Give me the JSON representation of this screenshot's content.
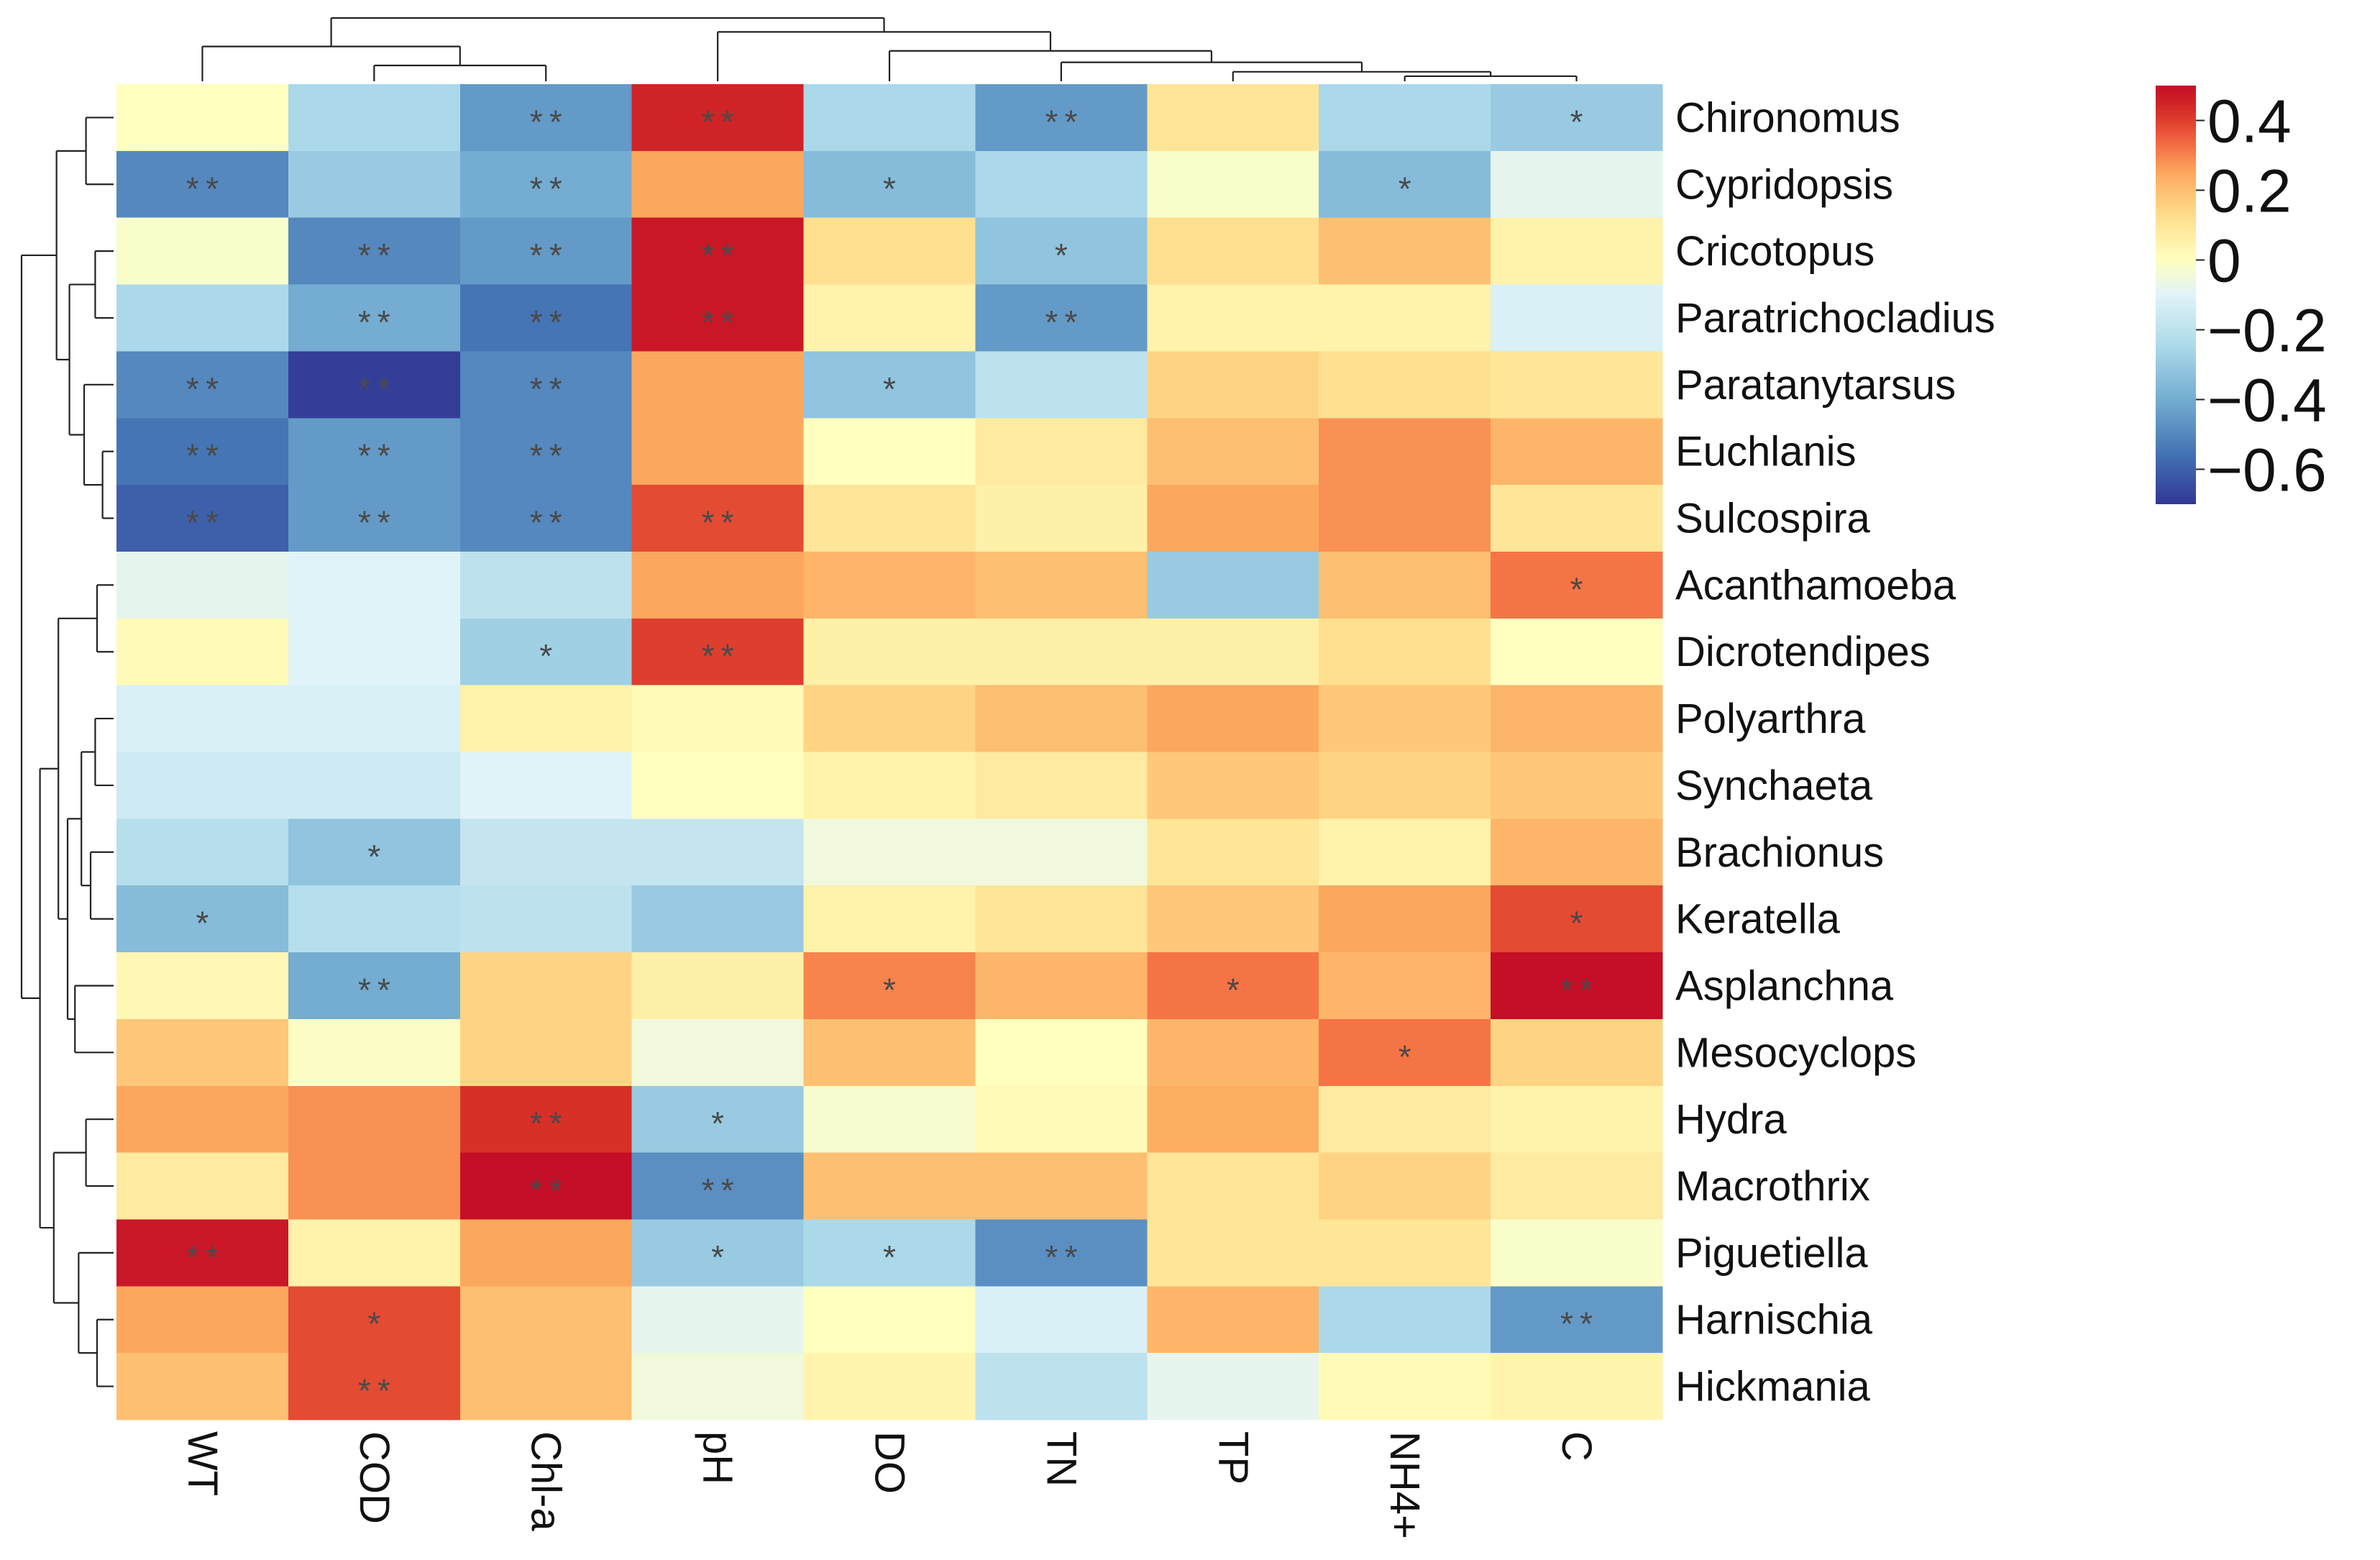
{
  "chart_data": {
    "type": "heatmap",
    "title": "",
    "columns": [
      "WT",
      "COD",
      "Chl-a",
      "pH",
      "DO",
      "TN",
      "TP",
      "NH4+",
      "C"
    ],
    "rows": [
      "Chironomus",
      "Cypridopsis",
      "Cricotopus",
      "Paratrichocladius",
      "Paratanytarsus",
      "Euchlanis",
      "Sulcospira",
      "Acanthamoeba",
      "Dicrotendipes",
      "Polyarthra",
      "Synchaeta",
      "Brachionus",
      "Keratella",
      "Asplanchna",
      "Mesocyclops",
      "Hydra",
      "Macrothrix",
      "Piguetiella",
      "Harnischia",
      "Hickmania"
    ],
    "values": [
      [
        0.0,
        -0.25,
        -0.45,
        0.45,
        -0.25,
        -0.45,
        0.1,
        -0.25,
        -0.3
      ],
      [
        -0.5,
        -0.3,
        -0.4,
        0.25,
        -0.35,
        -0.25,
        -0.02,
        -0.35,
        -0.08
      ],
      [
        -0.02,
        -0.5,
        -0.45,
        0.48,
        0.12,
        -0.32,
        0.12,
        0.2,
        0.05
      ],
      [
        -0.25,
        -0.4,
        -0.55,
        0.48,
        0.05,
        -0.45,
        0.05,
        0.05,
        -0.12
      ],
      [
        -0.5,
        -0.68,
        -0.5,
        0.25,
        -0.32,
        -0.2,
        0.15,
        0.12,
        0.1
      ],
      [
        -0.55,
        -0.45,
        -0.5,
        0.25,
        0.0,
        0.08,
        0.2,
        0.28,
        0.22
      ],
      [
        -0.6,
        -0.45,
        -0.5,
        0.38,
        0.1,
        0.06,
        0.25,
        0.28,
        0.1
      ],
      [
        -0.08,
        -0.1,
        -0.2,
        0.25,
        0.22,
        0.2,
        -0.3,
        0.2,
        0.32
      ],
      [
        0.02,
        -0.1,
        -0.28,
        0.4,
        0.06,
        0.06,
        0.06,
        0.12,
        0.0
      ],
      [
        -0.12,
        -0.12,
        0.05,
        0.02,
        0.15,
        0.2,
        0.25,
        0.18,
        0.22
      ],
      [
        -0.15,
        -0.15,
        -0.1,
        0.0,
        0.05,
        0.08,
        0.18,
        0.15,
        0.18
      ],
      [
        -0.22,
        -0.32,
        -0.18,
        -0.18,
        -0.05,
        -0.05,
        0.1,
        0.05,
        0.22
      ],
      [
        -0.35,
        -0.22,
        -0.2,
        -0.3,
        0.05,
        0.1,
        0.18,
        0.25,
        0.38
      ],
      [
        0.03,
        -0.4,
        0.15,
        0.06,
        0.3,
        0.22,
        0.32,
        0.22,
        0.5
      ],
      [
        0.18,
        -0.01,
        0.15,
        -0.05,
        0.2,
        0.0,
        0.22,
        0.32,
        0.15
      ],
      [
        0.25,
        0.28,
        0.42,
        -0.3,
        -0.03,
        0.02,
        0.24,
        0.08,
        0.05
      ],
      [
        0.08,
        0.28,
        0.5,
        -0.48,
        0.2,
        0.2,
        0.1,
        0.15,
        0.08
      ],
      [
        0.48,
        0.05,
        0.25,
        -0.3,
        -0.25,
        -0.48,
        0.1,
        0.1,
        -0.02
      ],
      [
        0.25,
        0.38,
        0.2,
        -0.08,
        0.0,
        -0.12,
        0.22,
        -0.25,
        -0.45
      ],
      [
        0.2,
        0.38,
        0.2,
        -0.05,
        0.04,
        -0.2,
        -0.08,
        0.02,
        0.04
      ]
    ],
    "significance": [
      [
        "",
        "",
        "**",
        "**",
        "",
        "**",
        "",
        "",
        "*"
      ],
      [
        "**",
        "",
        "**",
        "",
        "*",
        "",
        "",
        "*",
        ""
      ],
      [
        "",
        "**",
        "**",
        "**",
        "",
        "*",
        "",
        "",
        ""
      ],
      [
        "",
        "**",
        "**",
        "**",
        "",
        "**",
        "",
        "",
        ""
      ],
      [
        "**",
        "**",
        "**",
        "",
        "*",
        "",
        "",
        "",
        ""
      ],
      [
        "**",
        "**",
        "**",
        "",
        "",
        "",
        "",
        "",
        ""
      ],
      [
        "**",
        "**",
        "**",
        "**",
        "",
        "",
        "",
        "",
        ""
      ],
      [
        "",
        "",
        "",
        "",
        "",
        "",
        "",
        "",
        "*"
      ],
      [
        "",
        "",
        "*",
        "**",
        "",
        "",
        "",
        "",
        ""
      ],
      [
        "",
        "",
        "",
        "",
        "",
        "",
        "",
        "",
        ""
      ],
      [
        "",
        "",
        "",
        "",
        "",
        "",
        "",
        "",
        ""
      ],
      [
        "",
        "*",
        "",
        "",
        "",
        "",
        "",
        "",
        ""
      ],
      [
        "*",
        "",
        "",
        "",
        "",
        "",
        "",
        "",
        "*"
      ],
      [
        "",
        "**",
        "",
        "",
        "*",
        "",
        "*",
        "",
        "**"
      ],
      [
        "",
        "",
        "",
        "",
        "",
        "",
        "",
        "*",
        ""
      ],
      [
        "",
        "",
        "**",
        "*",
        "",
        "",
        "",
        "",
        ""
      ],
      [
        "",
        "",
        "**",
        "**",
        "",
        "",
        "",
        "",
        ""
      ],
      [
        "**",
        "",
        "",
        "*",
        "*",
        "**",
        "",
        "",
        ""
      ],
      [
        "",
        "*",
        "",
        "",
        "",
        "",
        "",
        "",
        "**"
      ],
      [
        "",
        "**",
        "",
        "",
        "",
        "",
        "",
        "",
        ""
      ]
    ],
    "color_scale": {
      "range": [
        -0.7,
        0.5
      ],
      "low_color": "#313695",
      "mid_color": "#FFFFBF",
      "high_color": "#C50E27",
      "ticks": [
        0.4,
        0.2,
        0,
        -0.2,
        -0.4,
        -0.6
      ],
      "tick_labels": [
        "0.4",
        "0.2",
        "0",
        "−0.2",
        "−0.4",
        "−0.6"
      ]
    },
    "legend_position": "right"
  }
}
